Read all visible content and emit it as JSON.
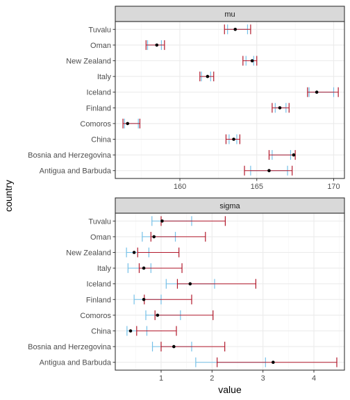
{
  "chart_data": {
    "type": "errorbar",
    "xlabel": "value",
    "ylabel": "country",
    "countries": [
      "Antigua and Barbuda",
      "Bosnia and Herzegovina",
      "China",
      "Comoros",
      "Finland",
      "Iceland",
      "Italy",
      "New Zealand",
      "Oman",
      "Tuvalu"
    ],
    "colors": {
      "outer_interval": "#b2182b",
      "inner_interval": "#74c0e8",
      "point": "#000000",
      "panel_border": "#333333",
      "strip_fill": "#d9d9d9",
      "grid_major": "#ebebeb",
      "grid_minor": "#f5f5f5"
    },
    "panels": [
      {
        "title": "mu",
        "xlim": [
          155.8,
          170.7
        ],
        "xticks": [
          160,
          165,
          170
        ],
        "xtick_labels": [
          "160",
          "165",
          "170"
        ],
        "series": [
          {
            "country": "Antigua and Barbuda",
            "point": 165.8,
            "outer": [
              164.2,
              167.3
            ],
            "inner": [
              164.6,
              167.0
            ]
          },
          {
            "country": "Bosnia and Herzegovina",
            "point": 167.4,
            "outer": [
              165.8,
              167.5
            ],
            "inner": [
              166.0,
              167.2
            ]
          },
          {
            "country": "China",
            "point": 163.5,
            "outer": [
              163.0,
              163.9
            ],
            "inner": [
              163.2,
              163.7
            ]
          },
          {
            "country": "Comoros",
            "point": 156.6,
            "outer": [
              156.3,
              157.4
            ],
            "inner": [
              156.4,
              157.3
            ]
          },
          {
            "country": "Finland",
            "point": 166.5,
            "outer": [
              166.0,
              167.1
            ],
            "inner": [
              166.2,
              166.9
            ]
          },
          {
            "country": "Iceland",
            "point": 168.9,
            "outer": [
              168.3,
              170.3
            ],
            "inner": [
              168.4,
              170.0
            ]
          },
          {
            "country": "Italy",
            "point": 161.8,
            "outer": [
              161.3,
              162.2
            ],
            "inner": [
              161.4,
              162.0
            ]
          },
          {
            "country": "New Zealand",
            "point": 164.7,
            "outer": [
              164.1,
              165.0
            ],
            "inner": [
              164.3,
              164.8
            ]
          },
          {
            "country": "Oman",
            "point": 158.5,
            "outer": [
              157.8,
              159.0
            ],
            "inner": [
              157.9,
              158.8
            ]
          },
          {
            "country": "Tuvalu",
            "point": 163.6,
            "outer": [
              162.9,
              164.6
            ],
            "inner": [
              163.1,
              164.4
            ]
          }
        ]
      },
      {
        "title": "sigma",
        "xlim": [
          0.1,
          4.6
        ],
        "xticks": [
          1,
          2,
          3,
          4
        ],
        "xtick_labels": [
          "1",
          "2",
          "3",
          "4"
        ],
        "series": [
          {
            "country": "Antigua and Barbuda",
            "point": 3.2,
            "outer": [
              2.1,
              4.45
            ],
            "inner": [
              1.68,
              3.05
            ]
          },
          {
            "country": "Bosnia and Herzegovina",
            "point": 1.25,
            "outer": [
              1.0,
              2.25
            ],
            "inner": [
              0.83,
              1.6
            ]
          },
          {
            "country": "China",
            "point": 0.4,
            "outer": [
              0.52,
              1.3
            ],
            "inner": [
              0.33,
              0.72
            ]
          },
          {
            "country": "Comoros",
            "point": 0.93,
            "outer": [
              0.88,
              2.02
            ],
            "inner": [
              0.7,
              1.38
            ]
          },
          {
            "country": "Finland",
            "point": 0.66,
            "outer": [
              0.67,
              1.6
            ],
            "inner": [
              0.47,
              1.0
            ]
          },
          {
            "country": "Iceland",
            "point": 1.57,
            "outer": [
              1.32,
              2.86
            ],
            "inner": [
              1.1,
              2.05
            ]
          },
          {
            "country": "Italy",
            "point": 0.66,
            "outer": [
              0.57,
              1.41
            ],
            "inner": [
              0.35,
              0.8
            ]
          },
          {
            "country": "New Zealand",
            "point": 0.47,
            "outer": [
              0.54,
              1.35
            ],
            "inner": [
              0.32,
              0.76
            ]
          },
          {
            "country": "Oman",
            "point": 0.86,
            "outer": [
              0.8,
              1.87
            ],
            "inner": [
              0.63,
              1.28
            ]
          },
          {
            "country": "Tuvalu",
            "point": 1.02,
            "outer": [
              1.0,
              2.26
            ],
            "inner": [
              0.82,
              1.6
            ]
          }
        ]
      }
    ]
  }
}
